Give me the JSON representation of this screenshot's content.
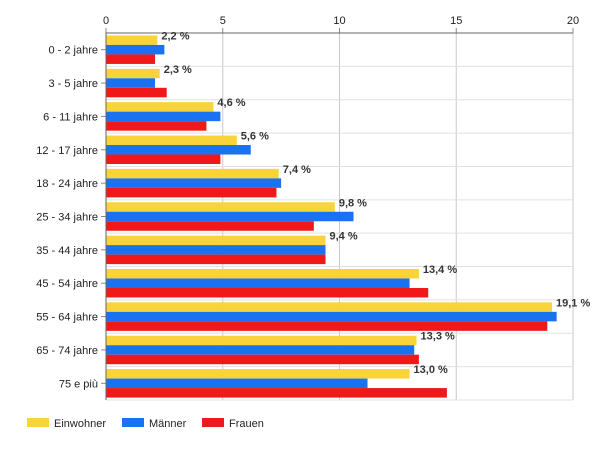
{
  "chart_data": {
    "type": "bar",
    "orientation": "horizontal",
    "categories": [
      "0 - 2 jahre",
      "3 - 5 jahre",
      "6 - 11 jahre",
      "12 - 17 jahre",
      "18 - 24 jahre",
      "25 - 34 jahre",
      "35 - 44 jahre",
      "45 - 54 jahre",
      "55 - 64 jahre",
      "65 - 74 jahre",
      "75 e più"
    ],
    "series": [
      {
        "name": "Einwohner",
        "color": "#f8d43a",
        "values": [
          2.2,
          2.3,
          4.6,
          5.6,
          7.4,
          9.8,
          9.4,
          13.4,
          19.1,
          13.3,
          13.0
        ]
      },
      {
        "name": "Männer",
        "color": "#1a72f0",
        "values": [
          2.5,
          2.1,
          4.9,
          6.2,
          7.5,
          10.6,
          9.4,
          13.0,
          19.3,
          13.2,
          11.2
        ]
      },
      {
        "name": "Frauen",
        "color": "#f01818",
        "values": [
          2.1,
          2.6,
          4.3,
          4.9,
          7.3,
          8.9,
          9.4,
          13.8,
          18.9,
          13.4,
          14.6
        ]
      }
    ],
    "data_labels": [
      "2,2 %",
      "2,3 %",
      "4,6 %",
      "5,6 %",
      "7,4 %",
      "9,8 %",
      "9,4 %",
      "13,4 %",
      "19,1 %",
      "13,3 %",
      "13,0 %"
    ],
    "x_ticks": [
      0,
      5,
      10,
      15,
      20
    ],
    "xlim": [
      0,
      20
    ],
    "x_axis_position": "top",
    "grid": true,
    "legend_position": "bottom-left"
  }
}
